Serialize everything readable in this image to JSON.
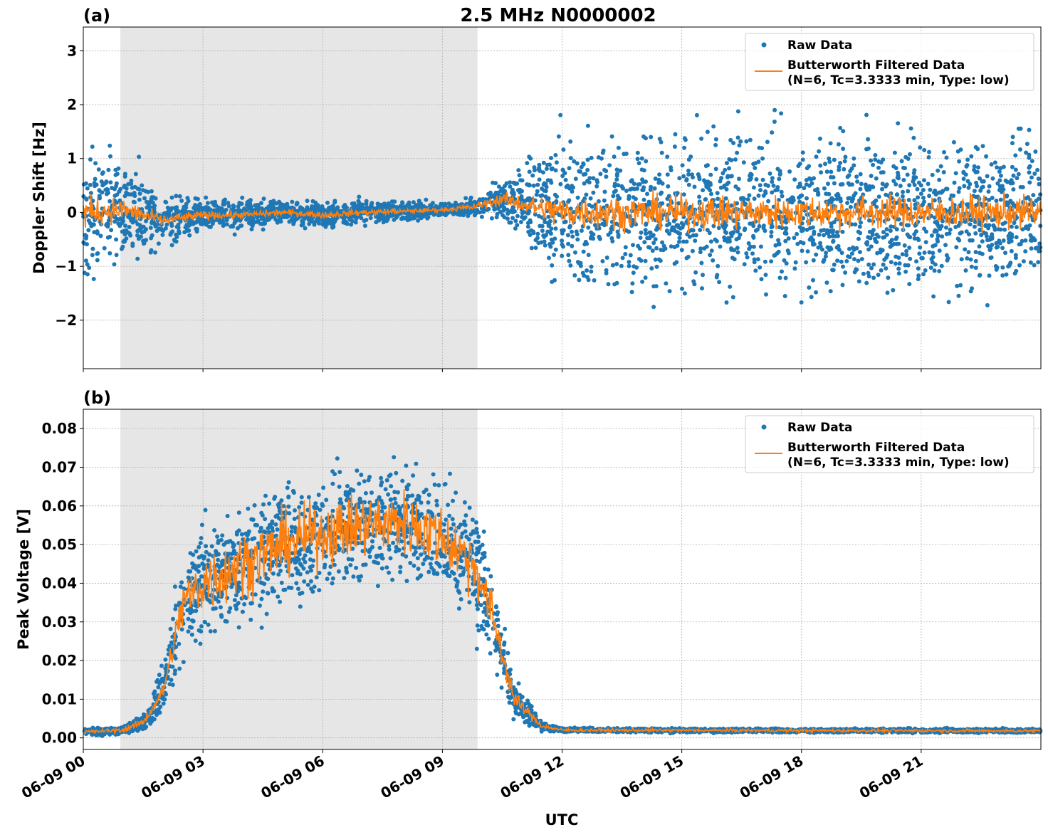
{
  "title": "2.5 MHz N0000002",
  "xlabel": "UTC",
  "colors": {
    "raw": "#1f77b4",
    "filtered": "#ff7f0e",
    "shade": "#e6e6e6",
    "grid": "#b0b0b0"
  },
  "chart_data": [
    {
      "panel_label": "(a)",
      "type": "scatter+line",
      "ylabel": "Doppler Shift [Hz]",
      "xlim_hours": [
        0,
        24
      ],
      "ylim": [
        -2.9,
        3.44
      ],
      "x_ticks": [
        "06-09 00",
        "06-09 03",
        "06-09 06",
        "06-09 09",
        "06-09 12",
        "06-09 15",
        "06-09 18",
        "06-09 21"
      ],
      "x_tick_hours": [
        0,
        3,
        6,
        9,
        12,
        15,
        18,
        21
      ],
      "y_ticks": [
        -2,
        -1,
        0,
        1,
        2,
        3
      ],
      "y_tick_labels": [
        "−2",
        "−1",
        "0",
        "1",
        "2",
        "3"
      ],
      "grid": true,
      "shaded_interval_hours": [
        0.93,
        9.88
      ],
      "legend": {
        "placement": "top-right",
        "entries": [
          "Raw Data",
          "Butterworth Filtered Data",
          "(N=6, Tc=3.3333 min, Type: low)"
        ]
      },
      "raw_envelope": {
        "hours": [
          0,
          1,
          2,
          3,
          4,
          5,
          6,
          7,
          8,
          9,
          9.8,
          10.5,
          11.3,
          12,
          24
        ],
        "center": [
          0,
          0.05,
          -0.15,
          -0.05,
          -0.05,
          0,
          -0.05,
          0,
          0.02,
          0.05,
          0.1,
          0.25,
          0.1,
          0,
          0
        ],
        "spread": [
          1.1,
          0.9,
          0.45,
          0.3,
          0.25,
          0.2,
          0.2,
          0.2,
          0.15,
          0.12,
          0.15,
          0.35,
          0.8,
          1.3,
          1.35
        ]
      },
      "filtered_ripple": [
        0.15,
        0.1,
        0.05,
        0.04,
        0.03,
        0.03,
        0.03,
        0.03,
        0.02,
        0.02,
        0.03,
        0.06,
        0.1,
        0.15,
        0.15
      ]
    },
    {
      "panel_label": "(b)",
      "type": "scatter+line",
      "ylabel": "Peak Voltage [V]",
      "xlim_hours": [
        0,
        24
      ],
      "ylim": [
        -0.003,
        0.085
      ],
      "x_ticks": [
        "06-09 00",
        "06-09 03",
        "06-09 06",
        "06-09 09",
        "06-09 12",
        "06-09 15",
        "06-09 18",
        "06-09 21"
      ],
      "x_tick_hours": [
        0,
        3,
        6,
        9,
        12,
        15,
        18,
        21
      ],
      "y_ticks": [
        0,
        0.01,
        0.02,
        0.03,
        0.04,
        0.05,
        0.06,
        0.07,
        0.08
      ],
      "y_tick_labels": [
        "0.00",
        "0.01",
        "0.02",
        "0.03",
        "0.04",
        "0.05",
        "0.06",
        "0.07",
        "0.08"
      ],
      "grid": true,
      "shaded_interval_hours": [
        0.93,
        9.88
      ],
      "legend": {
        "placement": "top-right",
        "entries": [
          "Raw Data",
          "Butterworth Filtered Data",
          "(N=6, Tc=3.3333 min, Type: low)"
        ]
      },
      "raw_envelope": {
        "hours": [
          0,
          1,
          1.5,
          2,
          2.5,
          3,
          4,
          5,
          6,
          7,
          8,
          9,
          9.8,
          10.3,
          10.8,
          11.5,
          12,
          24
        ],
        "center": [
          0.0015,
          0.002,
          0.004,
          0.012,
          0.035,
          0.04,
          0.045,
          0.05,
          0.053,
          0.055,
          0.056,
          0.052,
          0.045,
          0.03,
          0.01,
          0.003,
          0.002,
          0.0018
        ],
        "spread": [
          0.0008,
          0.001,
          0.002,
          0.006,
          0.012,
          0.014,
          0.014,
          0.014,
          0.013,
          0.013,
          0.013,
          0.013,
          0.013,
          0.01,
          0.005,
          0.001,
          0.0005,
          0.0005
        ]
      },
      "filtered_ripple": [
        0.0002,
        0.0003,
        0.0005,
        0.001,
        0.003,
        0.004,
        0.004,
        0.004,
        0.004,
        0.004,
        0.004,
        0.004,
        0.004,
        0.003,
        0.001,
        0.0003,
        0.0002,
        0.0002
      ]
    }
  ]
}
